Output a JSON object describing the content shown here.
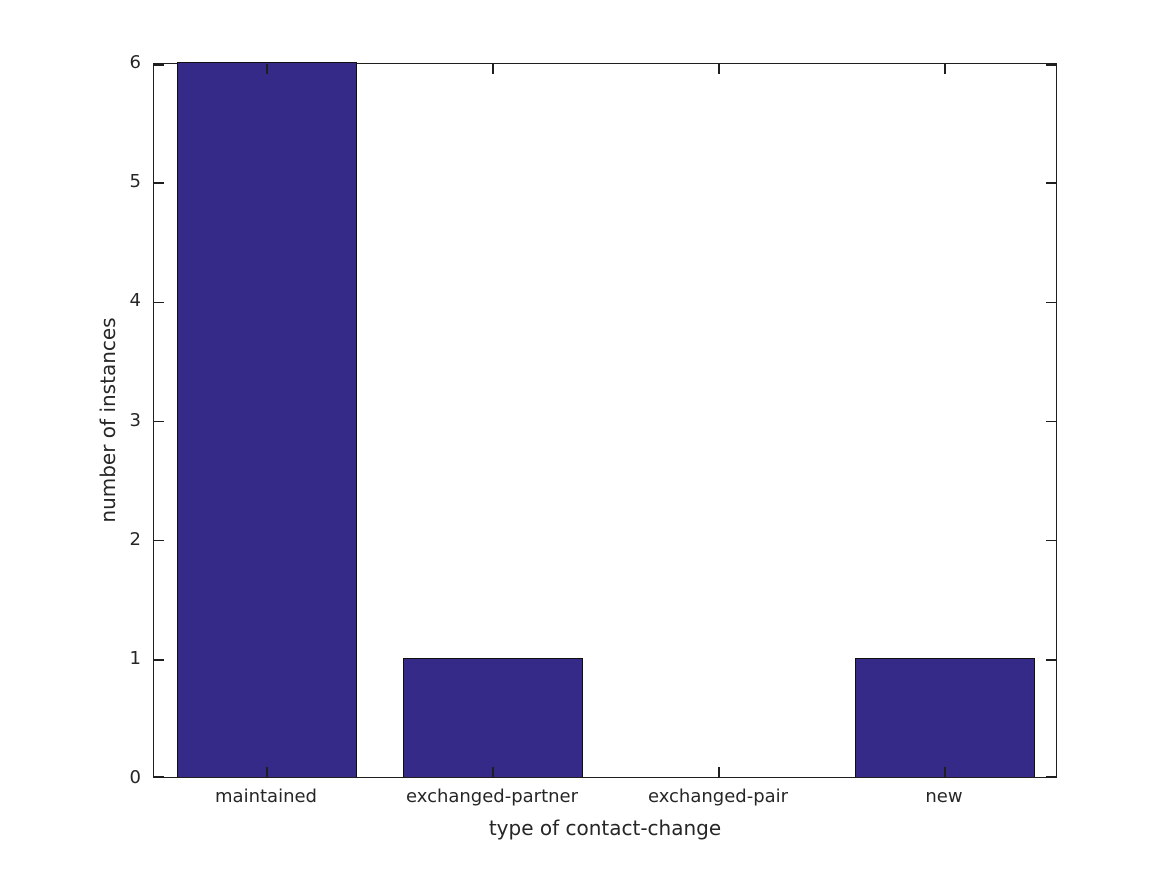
{
  "figure": {
    "background": "#ffffff"
  },
  "chart_data": {
    "type": "bar",
    "title": "",
    "xlabel": "type of contact-change",
    "ylabel": "number of instances",
    "categories": [
      "maintained",
      "exchanged-partner",
      "exchanged-pair",
      "new"
    ],
    "values": [
      6,
      1,
      0,
      1
    ],
    "ylim": [
      0,
      6
    ],
    "yticks": [
      0,
      1,
      2,
      3,
      4,
      5,
      6
    ],
    "bar_width_fraction": 0.8,
    "bar_color": "#352a87",
    "bar_edge_color": "#101010",
    "axis_color": "#1f1f1f",
    "text_color": "#262626",
    "grid": false,
    "legend_position": "none",
    "tick_direction": "in"
  }
}
